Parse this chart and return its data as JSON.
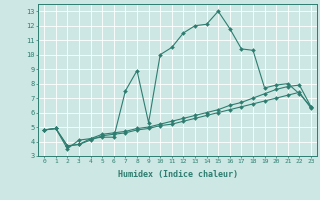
{
  "xlabel": "Humidex (Indice chaleur)",
  "bg_color": "#cde8e4",
  "line_color": "#2e7d70",
  "xlim": [
    -0.5,
    23.5
  ],
  "ylim": [
    3,
    13.5
  ],
  "yticks": [
    3,
    4,
    5,
    6,
    7,
    8,
    9,
    10,
    11,
    12,
    13
  ],
  "xticks": [
    0,
    1,
    2,
    3,
    4,
    5,
    6,
    7,
    8,
    9,
    10,
    11,
    12,
    13,
    14,
    15,
    16,
    17,
    18,
    19,
    20,
    21,
    22,
    23
  ],
  "line1_x": [
    0,
    1,
    2,
    3,
    4,
    5,
    6,
    7,
    8,
    9,
    10,
    11,
    12,
    13,
    14,
    15,
    16,
    17,
    18,
    19,
    20,
    21,
    22,
    23
  ],
  "line1_y": [
    4.8,
    4.9,
    3.5,
    4.1,
    4.2,
    4.3,
    4.3,
    7.5,
    8.9,
    5.3,
    10.0,
    10.5,
    11.5,
    12.0,
    12.1,
    13.0,
    11.8,
    10.4,
    10.3,
    7.7,
    7.9,
    8.0,
    7.3,
    6.4
  ],
  "line2_x": [
    0,
    1,
    2,
    3,
    4,
    5,
    6,
    7,
    8,
    9,
    10,
    11,
    12,
    13,
    14,
    15,
    16,
    17,
    18,
    19,
    20,
    21,
    22,
    23
  ],
  "line2_y": [
    4.8,
    4.9,
    3.7,
    3.8,
    4.2,
    4.5,
    4.6,
    4.7,
    4.9,
    5.0,
    5.2,
    5.4,
    5.6,
    5.8,
    6.0,
    6.2,
    6.5,
    6.7,
    7.0,
    7.3,
    7.6,
    7.8,
    7.9,
    6.4
  ],
  "line3_x": [
    0,
    1,
    2,
    3,
    4,
    5,
    6,
    7,
    8,
    9,
    10,
    11,
    12,
    13,
    14,
    15,
    16,
    17,
    18,
    19,
    20,
    21,
    22,
    23
  ],
  "line3_y": [
    4.8,
    4.9,
    3.7,
    3.8,
    4.1,
    4.4,
    4.5,
    4.6,
    4.8,
    4.9,
    5.1,
    5.2,
    5.4,
    5.6,
    5.8,
    6.0,
    6.2,
    6.4,
    6.6,
    6.8,
    7.0,
    7.2,
    7.4,
    6.3
  ]
}
